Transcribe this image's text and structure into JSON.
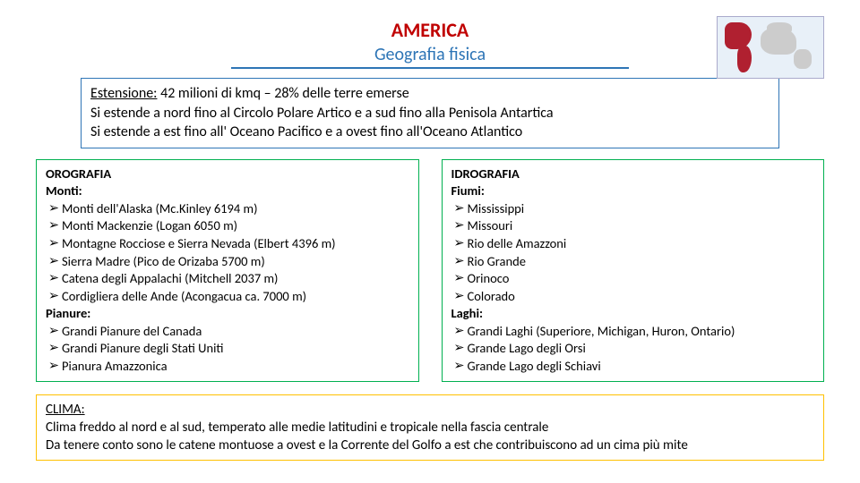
{
  "header": {
    "title": "AMERICA",
    "subtitle": "Geografia fisica"
  },
  "extension": {
    "line1_part1": "Estensione:",
    "line1_part2": " 42 milioni di kmq – 28% delle terre emerse",
    "line2": "Si estende a nord fino al Circolo Polare Artico e a sud fino alla Penisola Antartica",
    "line3": "Si estende a est fino all' Oceano Pacifico e a ovest fino all'Oceano Atlantico"
  },
  "orografia": {
    "heading": "OROGRAFIA",
    "monti_label": "Monti:",
    "monti": [
      "Monti dell'Alaska (Mc.Kinley 6194 m)",
      "Monti Mackenzie (Logan 6050 m)",
      "Montagne Rocciose e Sierra Nevada (Elbert 4396 m)",
      "Sierra Madre (Pico de Orizaba 5700 m)",
      "Catena degli Appalachi (Mitchell 2037 m)",
      "Cordigliera delle Ande (Acongacua ca. 7000 m)"
    ],
    "pianure_label": "Pianure:",
    "pianure": [
      "Grandi Pianure del Canada",
      "Grandi Pianure degli Stati Uniti",
      "Pianura Amazzonica"
    ]
  },
  "idrografia": {
    "heading": "IDROGRAFIA",
    "fiumi_label": "Fiumi:",
    "fiumi": [
      "Mississippi",
      "Missouri",
      "Rio delle Amazzoni",
      "Rio Grande",
      "Orinoco",
      "Colorado"
    ],
    "laghi_label": "Laghi:",
    "laghi": [
      "Grandi Laghi (Superiore, Michigan, Huron, Ontario)",
      "Grande Lago degli Orsi",
      "Grande Lago degli Schiavi"
    ]
  },
  "clima": {
    "heading": "CLIMA:",
    "line1": "Clima freddo al nord e al sud, temperato alle medie latitudini e tropicale nella fascia centrale",
    "line2": "Da tenere conto sono le catene montuose a ovest e la Corrente del Golfo a est che contribuiscono ad un cima più mite"
  },
  "bullet_glyph": "➢",
  "colors": {
    "title": "#c00000",
    "subtitle": "#2e75b6",
    "ext_border": "#2e75b6",
    "col_border": "#00b050",
    "clima_border": "#ffc000",
    "map_highlight": "#b02030"
  }
}
